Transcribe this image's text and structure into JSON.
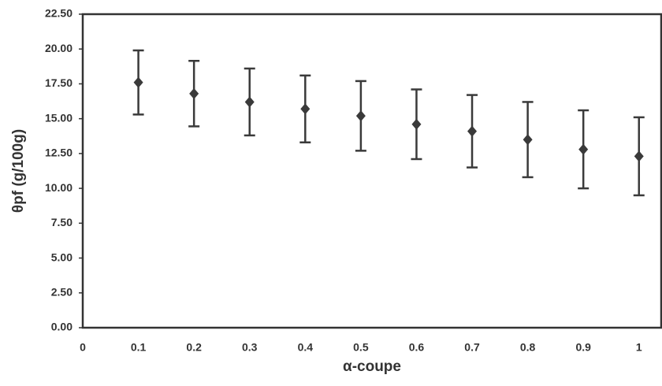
{
  "chart_data": {
    "type": "scatter",
    "xlabel": "α-coupe",
    "ylabel": "θpf (g/100g)",
    "x": [
      0.1,
      0.2,
      0.3,
      0.4,
      0.5,
      0.6,
      0.7,
      0.8,
      0.9,
      1
    ],
    "series": [
      {
        "color": "#3a3a3a",
        "values": [
          17.6,
          16.8,
          16.2,
          15.7,
          15.2,
          14.6,
          14.1,
          13.5,
          12.8,
          12.3
        ],
        "errors": [
          2.3,
          2.35,
          2.4,
          2.4,
          2.5,
          2.5,
          2.6,
          2.7,
          2.8,
          2.8
        ]
      }
    ],
    "xlim": [
      0,
      1.04
    ],
    "xticks": [
      0,
      0.1,
      0.2,
      0.3,
      0.4,
      0.5,
      0.6,
      0.7,
      0.8,
      0.9,
      1
    ],
    "ylim": [
      0,
      22.5
    ],
    "yticks": [
      {
        "value": 0,
        "label": "0.00"
      },
      {
        "value": 2.5,
        "label": "2.50"
      },
      {
        "value": 5,
        "label": "5.00"
      },
      {
        "value": 7.5,
        "label": "7.50"
      },
      {
        "value": 10,
        "label": "10.00"
      },
      {
        "value": 12.5,
        "label": "12.50"
      },
      {
        "value": 15,
        "label": "15.00"
      },
      {
        "value": 17.5,
        "label": "17.50"
      },
      {
        "value": 20,
        "label": "20.00"
      },
      {
        "value": 22.5,
        "label": "22.50"
      }
    ],
    "grid": false
  }
}
